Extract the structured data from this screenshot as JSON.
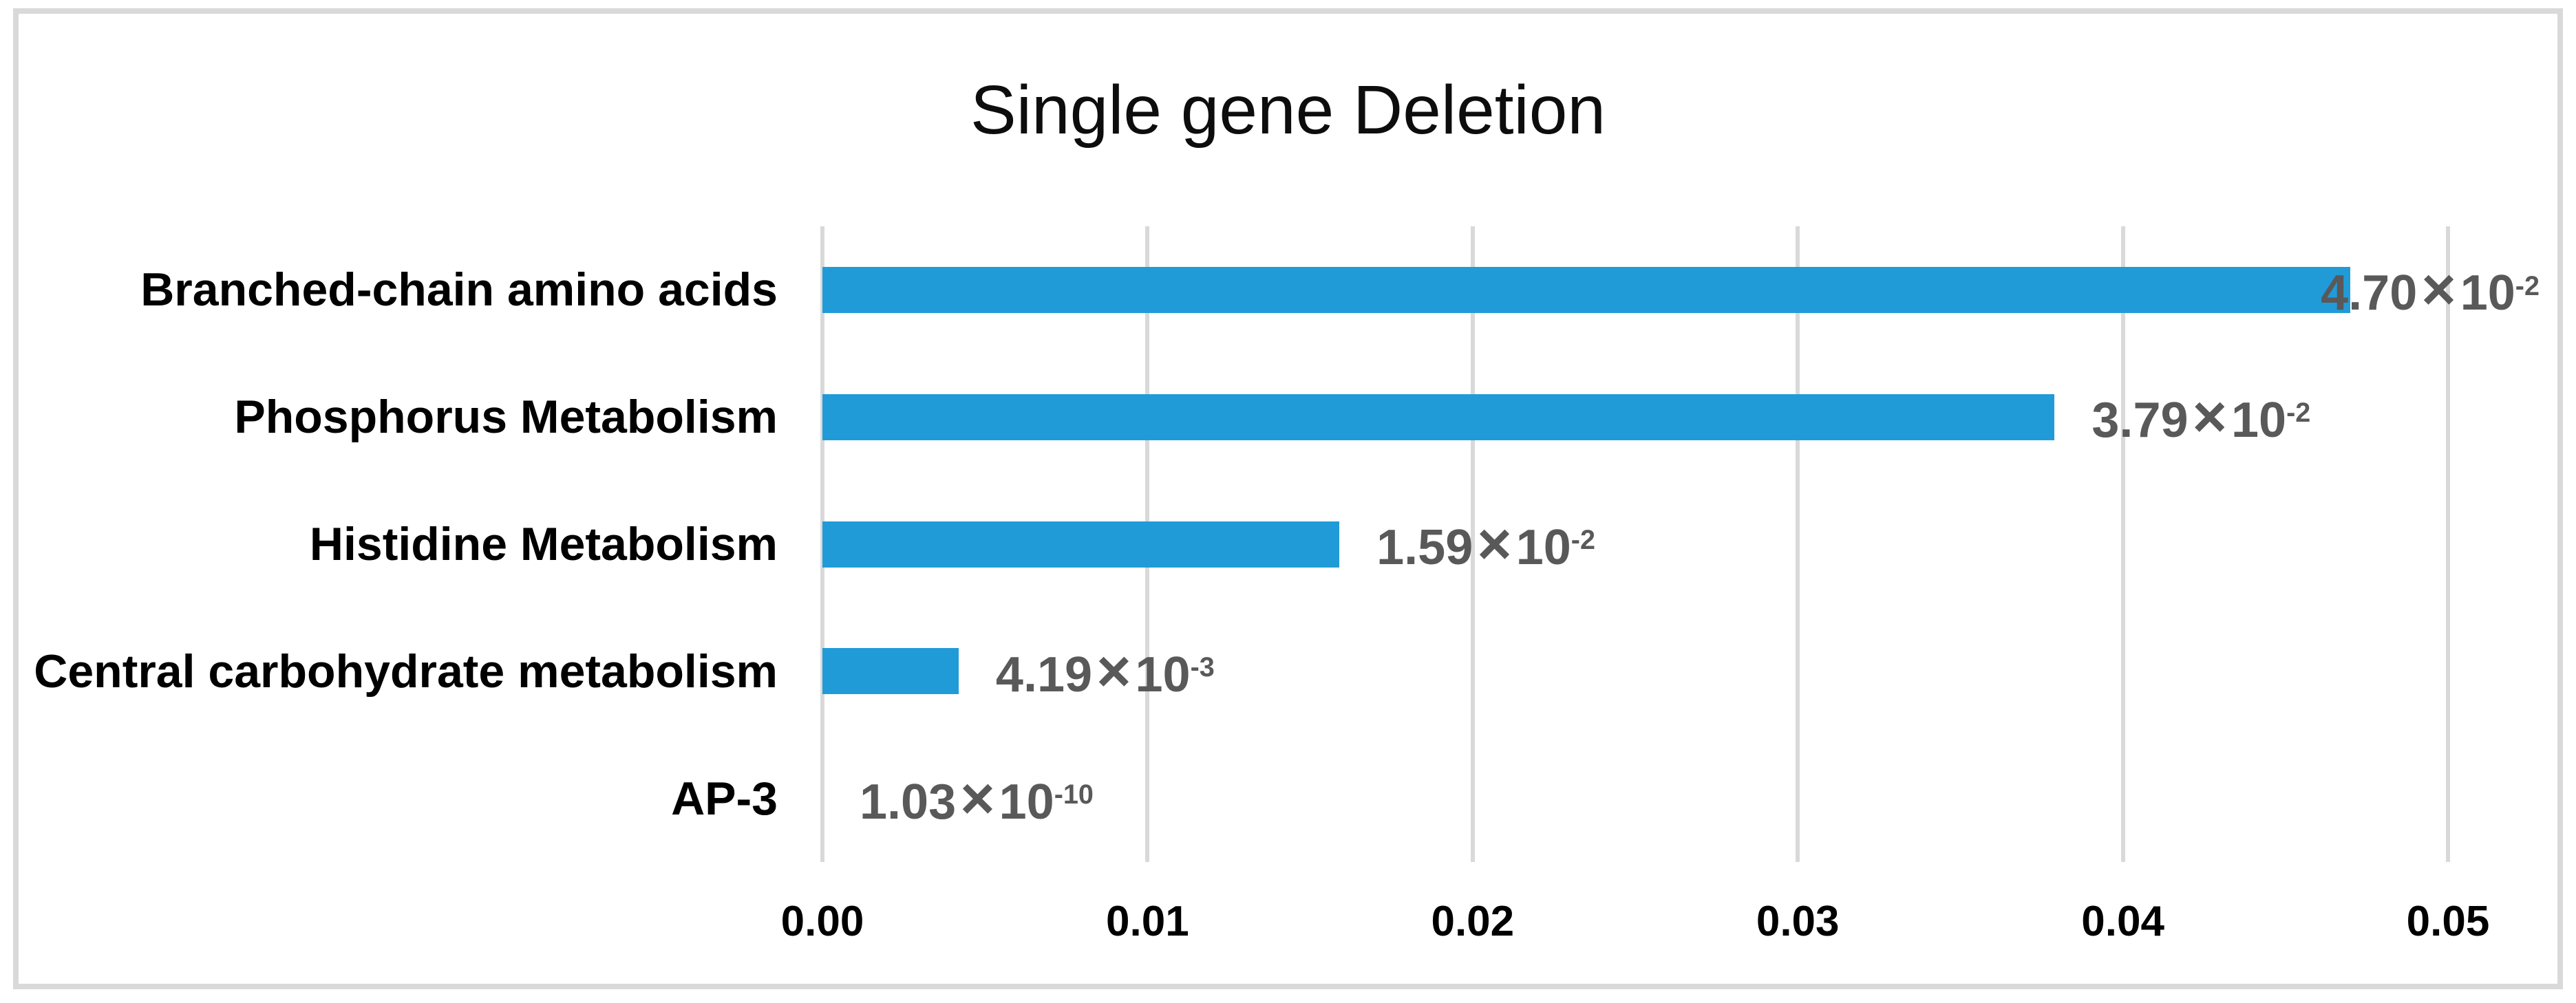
{
  "chart_data": {
    "type": "bar",
    "orientation": "horizontal",
    "title": "Single gene Deletion",
    "categories": [
      "Branched-chain amino acids",
      "Phosphorus Metabolism",
      "Histidine Metabolism",
      "Central carbohydrate metabolism",
      "AP-3"
    ],
    "values": [
      0.047,
      0.0379,
      0.0159,
      0.00419,
      1.03e-10
    ],
    "value_labels": [
      {
        "mantissa": "4.70",
        "exponent": "-2"
      },
      {
        "mantissa": "3.79",
        "exponent": "-2"
      },
      {
        "mantissa": "1.59",
        "exponent": "-2"
      },
      {
        "mantissa": "4.19",
        "exponent": "-3"
      },
      {
        "mantissa": "1.03",
        "exponent": "-10"
      }
    ],
    "times_symbol": "×",
    "exponent_base": "10",
    "xlabel": "",
    "ylabel": "",
    "xlim": [
      0,
      0.05
    ],
    "xtick_labels": [
      "0.00",
      "0.01",
      "0.02",
      "0.03",
      "0.04",
      "0.05"
    ],
    "grid": "vertical-only",
    "legend": "none",
    "colors": {
      "bar": "#209BD8",
      "value_label": "#595959",
      "gridline": "#D9D9D9",
      "frame_border": "#D9D9D9",
      "axis_text": "#000000",
      "title_text": "#0d0d0d",
      "background": "#FFFFFF"
    }
  }
}
